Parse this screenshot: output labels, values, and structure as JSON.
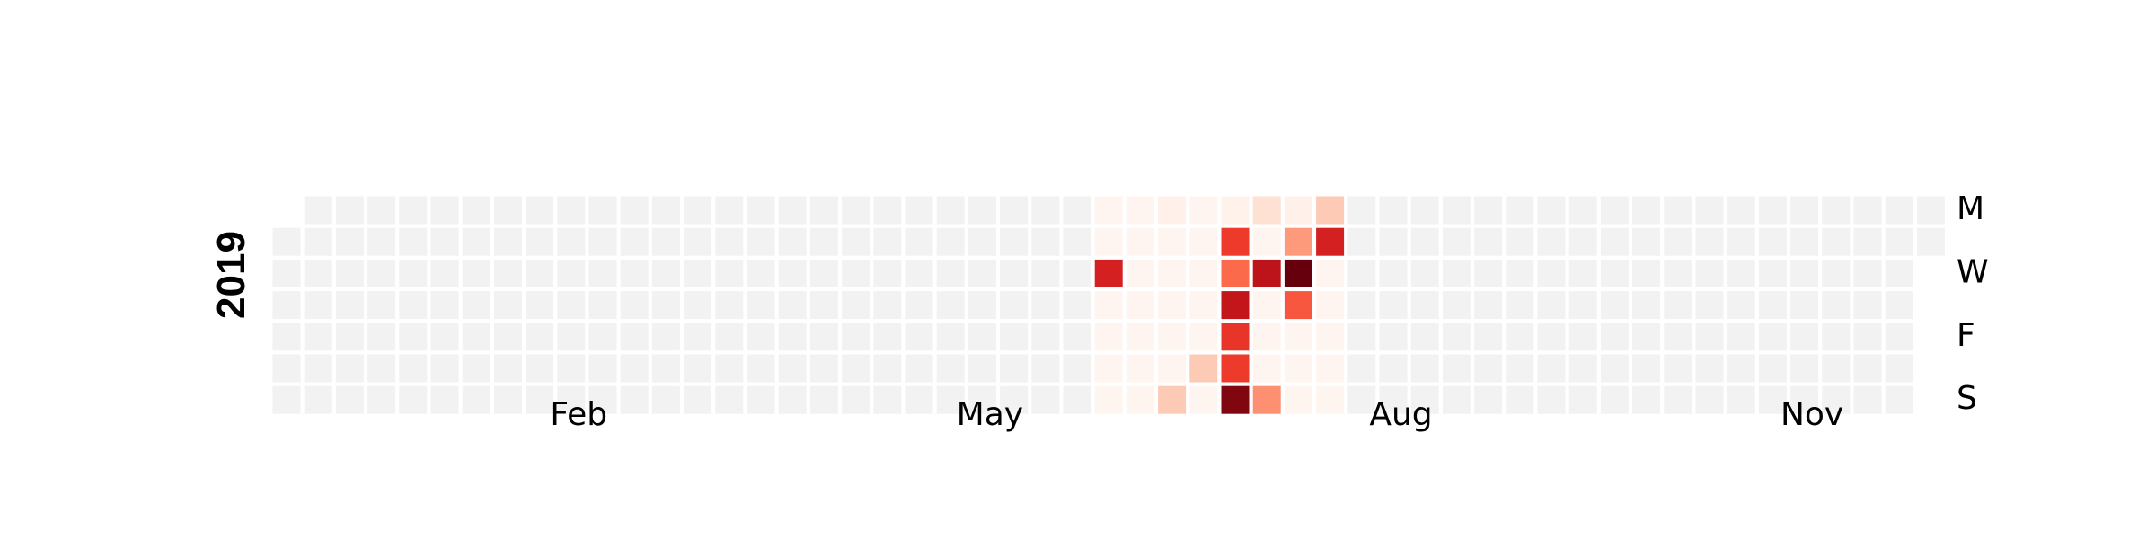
{
  "chart_data": {
    "type": "heatmap",
    "title": "",
    "year_label": "2019",
    "first_day": "2019-01-01",
    "empty_color": "#f2f2f2",
    "colormap": "Reds",
    "value_range": [
      0,
      1
    ],
    "month_ticks": [
      {
        "label": "Feb",
        "date": "2019-02-01"
      },
      {
        "label": "May",
        "date": "2019-05-01"
      },
      {
        "label": "Aug",
        "date": "2019-08-01"
      },
      {
        "label": "Nov",
        "date": "2019-11-01"
      }
    ],
    "weekday_ticks": [
      {
        "label": "M",
        "weekday": "Mon"
      },
      {
        "label": "W",
        "weekday": "Wed"
      },
      {
        "label": "F",
        "weekday": "Fri"
      },
      {
        "label": "S",
        "weekday": "Sun"
      }
    ],
    "active_period": [
      "2019-07-01",
      "2019-08-25"
    ],
    "values": [
      {
        "date": "2019-07-03",
        "value": 0.72
      },
      {
        "date": "2019-07-15",
        "value": 0.03
      },
      {
        "date": "2019-07-21",
        "value": 0.2
      },
      {
        "date": "2019-07-27",
        "value": 0.2
      },
      {
        "date": "2019-07-29",
        "value": 0.02
      },
      {
        "date": "2019-07-30",
        "value": 0.63
      },
      {
        "date": "2019-07-31",
        "value": 0.5
      },
      {
        "date": "2019-08-01",
        "value": 0.78
      },
      {
        "date": "2019-08-02",
        "value": 0.65
      },
      {
        "date": "2019-08-03",
        "value": 0.63
      },
      {
        "date": "2019-08-04",
        "value": 0.95
      },
      {
        "date": "2019-08-05",
        "value": 0.12
      },
      {
        "date": "2019-08-07",
        "value": 0.8
      },
      {
        "date": "2019-08-11",
        "value": 0.38
      },
      {
        "date": "2019-08-12",
        "value": 0.03
      },
      {
        "date": "2019-08-13",
        "value": 0.35
      },
      {
        "date": "2019-08-14",
        "value": 1.0
      },
      {
        "date": "2019-08-15",
        "value": 0.55
      },
      {
        "date": "2019-08-19",
        "value": 0.2
      },
      {
        "date": "2019-08-20",
        "value": 0.72
      }
    ]
  }
}
